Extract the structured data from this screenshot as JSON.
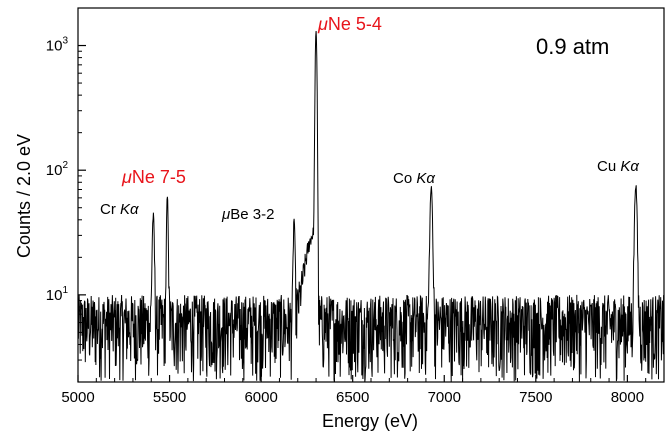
{
  "chart_data": {
    "type": "line",
    "title": "",
    "xlabel": "Energy (eV)",
    "ylabel": "Counts / 2.0 eV",
    "xlim": [
      5000,
      8200
    ],
    "ylim": [
      2,
      2000
    ],
    "y_scale": "log",
    "x_ticks": [
      5000,
      5500,
      6000,
      6500,
      7000,
      7500,
      8000
    ],
    "y_ticks": [
      {
        "base": "10",
        "exp": "1",
        "value": 10
      },
      {
        "base": "10",
        "exp": "2",
        "value": 100
      },
      {
        "base": "10",
        "exp": "3",
        "value": 1000
      }
    ],
    "grid": false,
    "series_color": "#000000",
    "background_level": 6,
    "peaks": [
      {
        "x": 5411,
        "height": 37,
        "width": 5
      },
      {
        "x": 5488,
        "height": 55,
        "width": 4
      },
      {
        "x": 6180,
        "height": 35,
        "width": 4
      },
      {
        "x": 6300,
        "height": 1300,
        "width": 4
      },
      {
        "x": 6929,
        "height": 66,
        "width": 6
      },
      {
        "x": 8046,
        "height": 70,
        "width": 6
      }
    ],
    "annotations": [
      {
        "prefix": "μ",
        "text": "Ne 5-4",
        "x": 6300,
        "y": 1300,
        "color": "#e8141b"
      },
      {
        "prefix": "μ",
        "text": "Ne 7-5",
        "x": 5300,
        "y": 85,
        "color": "#e8141b"
      },
      {
        "prefix": "",
        "text": "Cr ",
        "italic": "Kα",
        "x": 5200,
        "y": 48,
        "color": "#000000"
      },
      {
        "prefix": "μ",
        "text": "Be 3-2",
        "x": 5880,
        "y": 40,
        "color": "#000000"
      },
      {
        "prefix": "",
        "text": "Co ",
        "italic": "Kα",
        "x": 6850,
        "y": 85,
        "color": "#000000"
      },
      {
        "prefix": "",
        "text": "Cu ",
        "italic": "Kα",
        "x": 7970,
        "y": 95,
        "color": "#000000"
      }
    ],
    "pressure_label": "0.9 atm"
  }
}
